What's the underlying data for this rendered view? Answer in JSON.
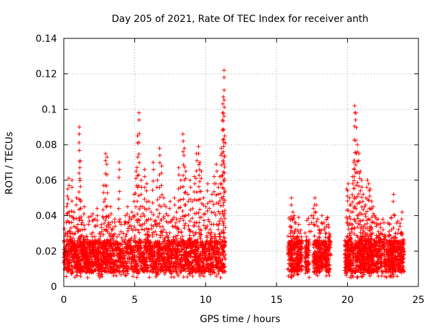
{
  "chart_data": {
    "type": "scatter",
    "title": "Day 205 of 2021, Rate Of TEC Index for receiver anth",
    "xlabel": "GPS time / hours",
    "ylabel": "ROTI / TECUs",
    "xlim": [
      0,
      25
    ],
    "ylim": [
      0,
      0.14
    ],
    "x_ticks": [
      0,
      5,
      10,
      15,
      20,
      25
    ],
    "y_ticks": [
      0,
      0.02,
      0.04,
      0.06,
      0.08,
      0.1,
      0.12,
      0.14
    ],
    "x_tick_labels": [
      "0",
      "5",
      "10",
      "15",
      "20",
      "25"
    ],
    "y_tick_labels": [
      "0",
      "0.02",
      "0.04",
      "0.06",
      "0.08",
      "0.1",
      "0.12",
      "0.14"
    ],
    "grid": true,
    "marker": "+",
    "color": "#ff0000",
    "series": [
      {
        "x": [
          0.05,
          0.12,
          0.2,
          0.28,
          0.35,
          0.42,
          0.5,
          0.58,
          0.65,
          0.72,
          0.8,
          0.9,
          1.0,
          1.1,
          1.15,
          1.2,
          1.3,
          1.45,
          1.6,
          1.75,
          1.9,
          2.05,
          2.2,
          2.35,
          2.5,
          2.65,
          2.8,
          2.95,
          3.05,
          3.15,
          3.3,
          3.45,
          3.6,
          3.75,
          3.9,
          4.05,
          4.2,
          4.35,
          4.5,
          4.65,
          4.8,
          4.95,
          5.1,
          5.2,
          5.3,
          5.45,
          5.55,
          5.7,
          5.85,
          6.0,
          6.15,
          6.3,
          6.45,
          6.6,
          6.75,
          6.9,
          7.05,
          7.2,
          7.35,
          7.5,
          7.65,
          7.8,
          7.95,
          8.1,
          8.25,
          8.4,
          8.5,
          8.6,
          8.75,
          8.9,
          9.05,
          9.2,
          9.35,
          9.5,
          9.6,
          9.7,
          9.85,
          10.0,
          10.15,
          10.3,
          10.45,
          10.6,
          10.75,
          10.9,
          11.0,
          11.1,
          11.2,
          11.25,
          11.3,
          11.35,
          15.95,
          16.05,
          16.15,
          16.25,
          16.35,
          16.45,
          16.55,
          16.65,
          17.0,
          17.1,
          17.2,
          17.3,
          17.45,
          17.6,
          17.7,
          17.8,
          17.9,
          18.0,
          18.1,
          18.2,
          18.35,
          18.5,
          18.6,
          18.7,
          19.95,
          20.05,
          20.15,
          20.25,
          20.35,
          20.45,
          20.5,
          20.6,
          20.7,
          20.8,
          20.9,
          21.0,
          21.1,
          21.2,
          21.3,
          21.4,
          21.5,
          21.6,
          21.7,
          21.8,
          21.9,
          22.05,
          22.2,
          22.35,
          22.5,
          22.65,
          22.8,
          22.95,
          23.1,
          23.25,
          23.4,
          23.55,
          23.7,
          23.85
        ],
        "y": [
          0.018,
          0.03,
          0.045,
          0.055,
          0.061,
          0.04,
          0.033,
          0.06,
          0.025,
          0.042,
          0.03,
          0.05,
          0.035,
          0.09,
          0.071,
          0.048,
          0.036,
          0.045,
          0.028,
          0.039,
          0.025,
          0.041,
          0.038,
          0.044,
          0.03,
          0.035,
          0.057,
          0.075,
          0.073,
          0.04,
          0.045,
          0.032,
          0.038,
          0.028,
          0.07,
          0.035,
          0.03,
          0.04,
          0.045,
          0.038,
          0.042,
          0.052,
          0.065,
          0.085,
          0.098,
          0.06,
          0.045,
          0.066,
          0.058,
          0.048,
          0.042,
          0.07,
          0.035,
          0.06,
          0.078,
          0.068,
          0.05,
          0.045,
          0.04,
          0.048,
          0.038,
          0.05,
          0.042,
          0.067,
          0.06,
          0.086,
          0.078,
          0.065,
          0.052,
          0.06,
          0.048,
          0.062,
          0.075,
          0.079,
          0.07,
          0.065,
          0.05,
          0.045,
          0.058,
          0.048,
          0.052,
          0.062,
          0.069,
          0.056,
          0.062,
          0.078,
          0.098,
          0.107,
          0.122,
          0.085,
          0.034,
          0.05,
          0.042,
          0.04,
          0.036,
          0.032,
          0.039,
          0.03,
          0.022,
          0.028,
          0.018,
          0.035,
          0.04,
          0.044,
          0.05,
          0.046,
          0.038,
          0.032,
          0.03,
          0.04,
          0.036,
          0.034,
          0.039,
          0.03,
          0.055,
          0.058,
          0.05,
          0.046,
          0.062,
          0.07,
          0.102,
          0.098,
          0.08,
          0.075,
          0.065,
          0.06,
          0.052,
          0.045,
          0.05,
          0.06,
          0.058,
          0.055,
          0.048,
          0.045,
          0.04,
          0.038,
          0.035,
          0.03,
          0.032,
          0.028,
          0.026,
          0.035,
          0.032,
          0.052,
          0.03,
          0.03,
          0.034,
          0.042
        ]
      }
    ],
    "note_baseline": "dense band of points between ~0.005 and ~0.03 throughout active intervals 0-11.4h, 15.8-16.8h, 17.0-17.3h, 17.6-18.8h, 19.8-24.0h"
  }
}
